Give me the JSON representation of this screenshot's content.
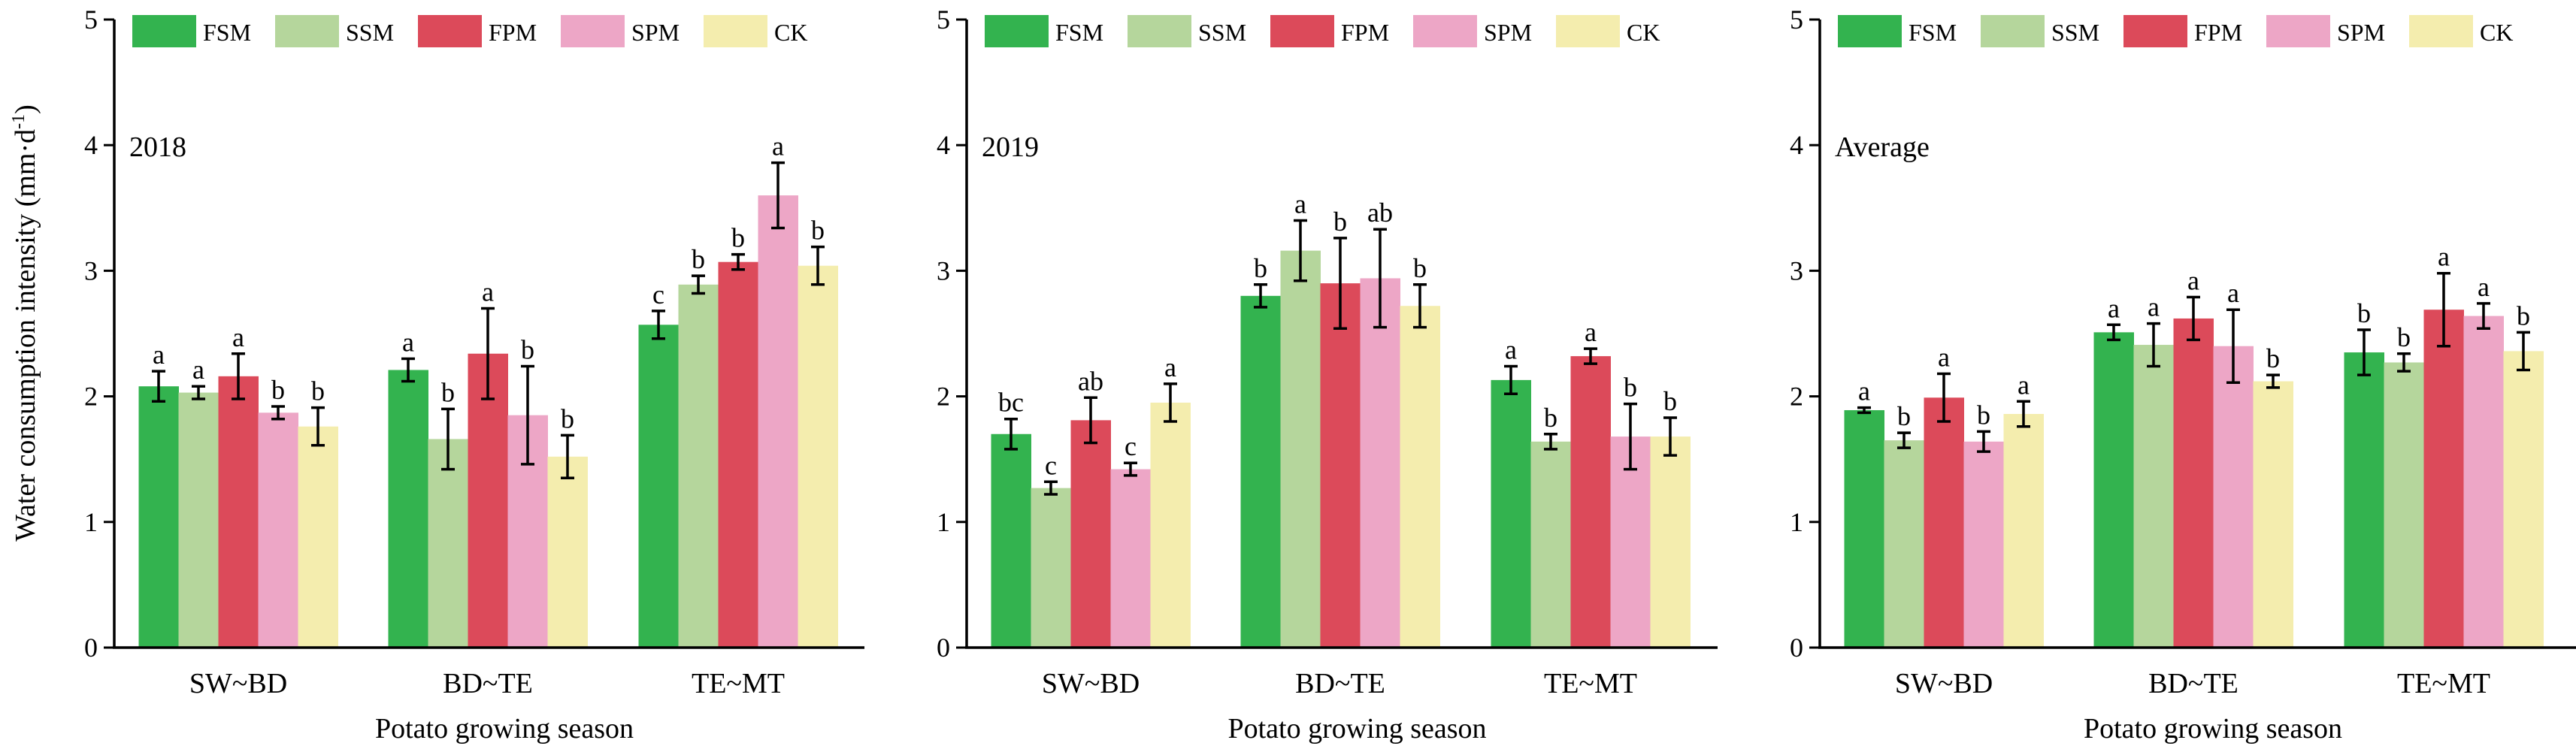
{
  "colors": {
    "FSM": "#33b34f",
    "SSM": "#b5d69c",
    "FPM": "#dc4a5a",
    "SPM": "#eda6c6",
    "CK": "#f4edae"
  },
  "ylabel": "Water consumption intensity (mm·d",
  "ylabel_sup": "-1",
  "ylabel_close": ")",
  "chart_data": [
    {
      "type": "bar",
      "panel_label": "2018",
      "xlabel": "Potato growing season",
      "categories": [
        "SW~BD",
        "BD~TE",
        "TE~MT"
      ],
      "ylim": [
        0,
        5
      ],
      "yticks": [
        "0",
        "1",
        "2",
        "3",
        "4",
        "5"
      ],
      "legend": [
        "FSM",
        "SSM",
        "FPM",
        "SPM",
        "CK"
      ],
      "legend_position": "top",
      "grid": false,
      "series": [
        {
          "name": "FSM",
          "values": [
            2.08,
            2.21,
            2.57
          ],
          "errors": [
            0.12,
            0.09,
            0.11
          ],
          "letters": [
            "a",
            "a",
            "c"
          ]
        },
        {
          "name": "SSM",
          "values": [
            2.03,
            1.66,
            2.89
          ],
          "errors": [
            0.05,
            0.24,
            0.07
          ],
          "letters": [
            "a",
            "b",
            "b"
          ]
        },
        {
          "name": "FPM",
          "values": [
            2.16,
            2.34,
            3.07
          ],
          "errors": [
            0.18,
            0.36,
            0.06
          ],
          "letters": [
            "a",
            "a",
            "b"
          ]
        },
        {
          "name": "SPM",
          "values": [
            1.87,
            1.85,
            3.6
          ],
          "errors": [
            0.05,
            0.39,
            0.26
          ],
          "letters": [
            "b",
            "b",
            "a"
          ]
        },
        {
          "name": "CK",
          "values": [
            1.76,
            1.52,
            3.04
          ],
          "errors": [
            0.15,
            0.17,
            0.15
          ],
          "letters": [
            "b",
            "b",
            "b"
          ]
        }
      ]
    },
    {
      "type": "bar",
      "panel_label": "2019",
      "xlabel": "Potato growing season",
      "categories": [
        "SW~BD",
        "BD~TE",
        "TE~MT"
      ],
      "ylim": [
        0,
        5
      ],
      "yticks": [
        "0",
        "1",
        "2",
        "3",
        "4",
        "5"
      ],
      "legend": [
        "FSM",
        "SSM",
        "FPM",
        "SPM",
        "CK"
      ],
      "legend_position": "top",
      "grid": false,
      "series": [
        {
          "name": "FSM",
          "values": [
            1.7,
            2.8,
            2.13
          ],
          "errors": [
            0.12,
            0.09,
            0.11
          ],
          "letters": [
            "bc",
            "b",
            "a"
          ]
        },
        {
          "name": "SSM",
          "values": [
            1.27,
            3.16,
            1.64
          ],
          "errors": [
            0.05,
            0.24,
            0.06
          ],
          "letters": [
            "c",
            "a",
            "b"
          ]
        },
        {
          "name": "FPM",
          "values": [
            1.81,
            2.9,
            2.32
          ],
          "errors": [
            0.18,
            0.36,
            0.06
          ],
          "letters": [
            "ab",
            "b",
            "a"
          ]
        },
        {
          "name": "SPM",
          "values": [
            1.42,
            2.94,
            1.68
          ],
          "errors": [
            0.05,
            0.39,
            0.26
          ],
          "letters": [
            "c",
            "ab",
            "b"
          ]
        },
        {
          "name": "CK",
          "values": [
            1.95,
            2.72,
            1.68
          ],
          "errors": [
            0.15,
            0.17,
            0.15
          ],
          "letters": [
            "a",
            "b",
            "b"
          ]
        }
      ]
    },
    {
      "type": "bar",
      "panel_label": "Average",
      "xlabel": "Potato growing season",
      "categories": [
        "SW~BD",
        "BD~TE",
        "TE~MT"
      ],
      "ylim": [
        0,
        5
      ],
      "yticks": [
        "0",
        "1",
        "2",
        "3",
        "4",
        "5"
      ],
      "legend": [
        "FSM",
        "SSM",
        "FPM",
        "SPM",
        "CK"
      ],
      "legend_position": "top",
      "grid": false,
      "series": [
        {
          "name": "FSM",
          "values": [
            1.89,
            2.51,
            2.35
          ],
          "errors": [
            0.02,
            0.06,
            0.18
          ],
          "letters": [
            "a",
            "a",
            "b"
          ]
        },
        {
          "name": "SSM",
          "values": [
            1.65,
            2.41,
            2.27
          ],
          "errors": [
            0.06,
            0.17,
            0.07
          ],
          "letters": [
            "b",
            "a",
            "b"
          ]
        },
        {
          "name": "FPM",
          "values": [
            1.99,
            2.62,
            2.69
          ],
          "errors": [
            0.19,
            0.17,
            0.29
          ],
          "letters": [
            "a",
            "a",
            "a"
          ]
        },
        {
          "name": "SPM",
          "values": [
            1.64,
            2.4,
            2.64
          ],
          "errors": [
            0.08,
            0.29,
            0.1
          ],
          "letters": [
            "b",
            "a",
            "a"
          ]
        },
        {
          "name": "CK",
          "values": [
            1.86,
            2.12,
            2.36
          ],
          "errors": [
            0.1,
            0.05,
            0.15
          ],
          "letters": [
            "a",
            "b",
            "b"
          ]
        }
      ]
    }
  ]
}
